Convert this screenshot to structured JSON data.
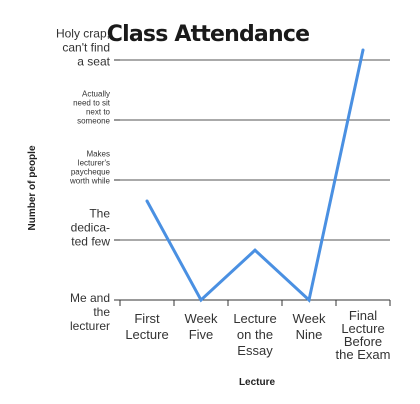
{
  "chart_data": {
    "type": "line",
    "title": "Class Attendance",
    "xlabel": "Lecture",
    "ylabel": "Number of people",
    "categories": [
      [
        "First",
        "Lecture"
      ],
      [
        "Week",
        "Five"
      ],
      [
        "Lecture",
        "on the",
        "Essay"
      ],
      [
        "Week",
        "Nine"
      ],
      [
        "Final",
        "Lecture",
        "Before",
        "the Exam"
      ]
    ],
    "y_levels": [
      [
        "Me and",
        "the",
        "lecturer"
      ],
      [
        "The",
        "dedica-",
        "ted few"
      ],
      [
        "Makes",
        "lecturer's",
        "paycheque",
        "worth while"
      ],
      [
        "Actually",
        "need to sit",
        "next to",
        "someone"
      ],
      [
        "Holy crap,",
        "can't find",
        "a seat"
      ]
    ],
    "ylim": [
      0,
      4
    ],
    "points": [
      {
        "x": 0,
        "y": 1.65
      },
      {
        "x": 1,
        "y": 0
      },
      {
        "x": 2,
        "y": 0.83
      },
      {
        "x": 3,
        "y": 0
      },
      {
        "x": 4,
        "y": 4
      }
    ],
    "grid": true,
    "line_color": "#4a90e2"
  }
}
